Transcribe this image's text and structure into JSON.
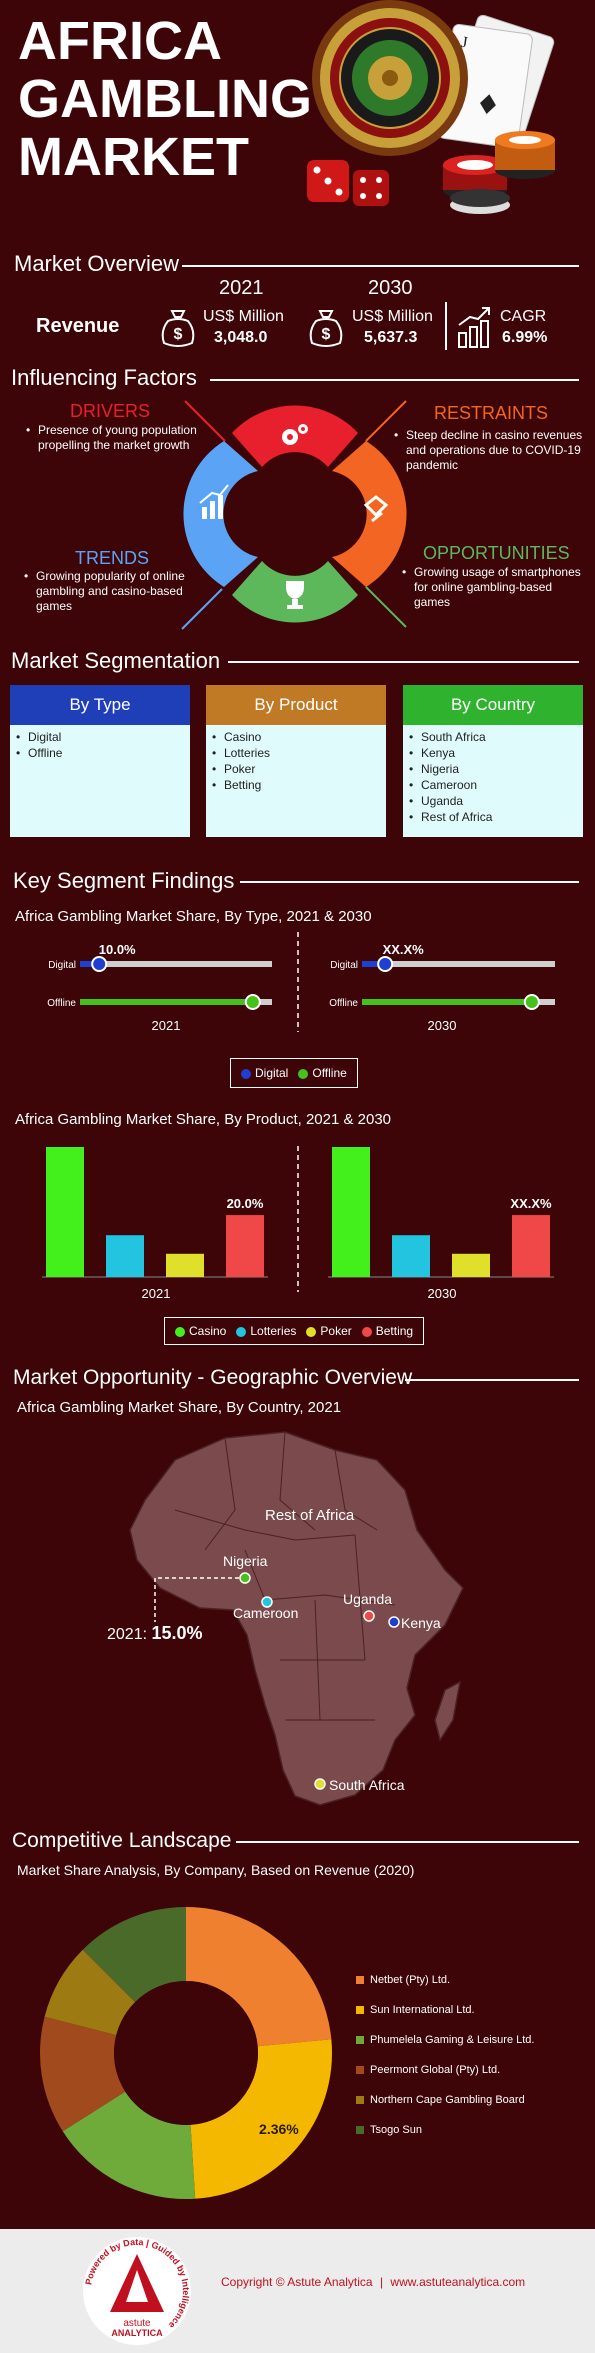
{
  "header": {
    "title_line1": "AFRICA",
    "title_line2": "GAMBLING",
    "title_line3": "MARKET"
  },
  "overview": {
    "section_title": "Market Overview",
    "revenue_label": "Revenue",
    "year1": "2021",
    "year2": "2030",
    "unit1": "US$ Million",
    "unit2": "US$ Million",
    "value1": "3,048.0",
    "value2": "5,637.3",
    "cagr_label": "CAGR",
    "cagr_value": "6.99%"
  },
  "factors": {
    "section_title": "Influencing Factors",
    "drivers_title": "DRIVERS",
    "drivers_text": "Presence of young population propelling the market growth",
    "restraints_title": "RESTRAINTS",
    "restraints_text": "Steep decline in casino revenues and operations due to COVID-19 pandemic",
    "trends_title": "TRENDS",
    "trends_text": "Growing popularity of online gambling and casino-based games",
    "opportunities_title": "OPPORTUNITIES",
    "opportunities_text": "Growing usage of smartphones for online gambling-based games",
    "colors": {
      "drivers": "#e8202e",
      "restraints": "#f26522",
      "trends": "#5ba4f5",
      "opportunities": "#5db85c"
    }
  },
  "segmentation": {
    "section_title": "Market Segmentation",
    "by_type": {
      "title": "By Type",
      "items": [
        "Digital",
        "Offline"
      ],
      "color": "#1f3fb8"
    },
    "by_product": {
      "title": "By Product",
      "items": [
        "Casino",
        "Lotteries",
        "Poker",
        "Betting"
      ],
      "color": "#c07a25"
    },
    "by_country": {
      "title": "By Country",
      "items": [
        "South Africa",
        "Kenya",
        "Nigeria",
        "Cameroon",
        "Uganda",
        "Rest of Africa"
      ],
      "color": "#2fb32f"
    }
  },
  "findings": {
    "section_title": "Key Segment Findings",
    "type_chart_title": "Africa Gambling Market Share, By Type, 2021 & 2030",
    "product_chart_title": "Africa Gambling Market Share, By Product, 2021 & 2030"
  },
  "geo": {
    "section_title": "Market Opportunity - Geographic Overview",
    "chart_title": "Africa Gambling Market Share, By Country, 2021",
    "labels": {
      "rest": "Rest of Africa",
      "nigeria": "Nigeria",
      "cameroon": "Cameroon",
      "uganda": "Uganda",
      "kenya": "Kenya",
      "south_africa": "South Africa",
      "callout_year": "2021:",
      "callout_value": "15.0%"
    }
  },
  "competitive": {
    "section_title": "Competitive Landscape",
    "chart_title": "Market Share Analysis, By Company, Based on Revenue (2020)"
  },
  "footer": {
    "copyright": "Copyright © Astute Analytica",
    "separator": "|",
    "website": "www.astuteanalytica.com",
    "logo_ring_text": "Powered by Data | Guided by Intelligence",
    "logo_name1": "astute",
    "logo_name2": "ANALYTICA"
  },
  "chart_data": [
    {
      "type": "bar",
      "title": "Africa Gambling Market Share, By Type, 2021 & 2030",
      "orientation": "horizontal-slider",
      "categories": [
        "Digital",
        "Offline"
      ],
      "series": [
        {
          "name": "2021",
          "values": [
            10.0,
            90.0
          ],
          "labels": [
            "10.0%",
            ""
          ]
        },
        {
          "name": "2030",
          "values": [
            12.0,
            88.0
          ],
          "labels": [
            "XX.X%",
            ""
          ]
        }
      ],
      "legend": [
        "Digital",
        "Offline"
      ],
      "colors": {
        "Digital": "#1f3fd0",
        "Offline": "#44c21a"
      }
    },
    {
      "type": "bar",
      "title": "Africa Gambling Market Share, By Product, 2021 & 2030",
      "categories": [
        "Casino",
        "Lotteries",
        "Poker",
        "Betting"
      ],
      "series": [
        {
          "name": "2021",
          "values": [
            42.0,
            13.5,
            7.5,
            20.0
          ],
          "labels": [
            "",
            "",
            "",
            "20.0%"
          ]
        },
        {
          "name": "2030",
          "values": [
            42.0,
            13.5,
            7.5,
            20.0
          ],
          "labels": [
            "",
            "",
            "",
            "XX.X%"
          ]
        }
      ],
      "legend": [
        "Casino",
        "Lotteries",
        "Poker",
        "Betting"
      ],
      "colors": {
        "Casino": "#44f01c",
        "Lotteries": "#22c4e0",
        "Poker": "#e0e02a",
        "Betting": "#f04848"
      }
    },
    {
      "type": "pie",
      "title": "Market Share Analysis, By Company, Based on Revenue (2020)",
      "donut": true,
      "labels": [
        "Netbet (Pty) Ltd.",
        "Sun International Ltd.",
        "Phumelela Gaming & Leisure Ltd.",
        "Peermont Global (Pty) Ltd.",
        "Northern Cape Gambling Board",
        "Tsogo Sun"
      ],
      "values": [
        23.5,
        25.5,
        17.0,
        13.0,
        8.5,
        12.5
      ],
      "data_label": "2.36%",
      "colors": [
        "#ee8030",
        "#f5b800",
        "#6fab3a",
        "#a14a1d",
        "#9e7a12",
        "#4a6a2a"
      ],
      "legend_position": "right"
    }
  ]
}
